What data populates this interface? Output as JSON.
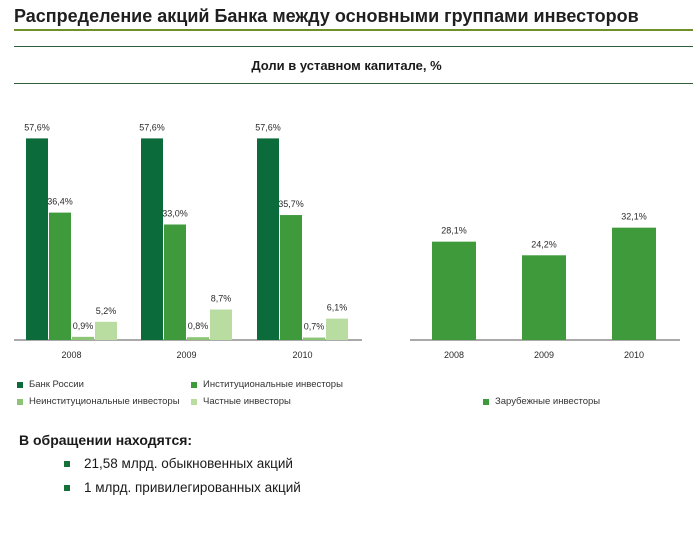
{
  "page": {
    "title": "Распределение акций Банка между основными группами инвесторов",
    "subtitle": "Доли в уставном капитале, %"
  },
  "colors": {
    "bank_russia": "#0b6b3a",
    "institutional": "#3f9a3c",
    "non_institutional": "#8cc576",
    "private": "#b9dca0",
    "foreign": "#3f9a3c",
    "accent_rule": "#6e8f2a"
  },
  "chart_data": [
    {
      "type": "bar",
      "categories": [
        "2008",
        "2009",
        "2010"
      ],
      "series": [
        {
          "name": "Банк России",
          "values": [
            57.6,
            57.6,
            57.6
          ],
          "labels": [
            "57,6%",
            "57,6%",
            "57,6%"
          ]
        },
        {
          "name": "Институциональные инвесторы",
          "values": [
            36.4,
            33.0,
            35.7
          ],
          "labels": [
            "36,4%",
            "33,0%",
            "35,7%"
          ]
        },
        {
          "name": "Неинституциональные инвесторы",
          "values": [
            0.9,
            0.8,
            0.7
          ],
          "labels": [
            "0,9%",
            "0,8%",
            "0,7%"
          ]
        },
        {
          "name": "Частные инвесторы",
          "values": [
            5.2,
            8.7,
            6.1
          ],
          "labels": [
            "5,2%",
            "8,7%",
            "6,1%"
          ]
        }
      ],
      "legend": "bottom",
      "grid": false
    },
    {
      "type": "bar",
      "categories": [
        "2008",
        "2009",
        "2010"
      ],
      "series": [
        {
          "name": "Зарубежные инвесторы",
          "values": [
            28.1,
            24.2,
            32.1
          ],
          "labels": [
            "28,1%",
            "24,2%",
            "32,1%"
          ]
        }
      ],
      "legend": "bottom",
      "grid": false
    }
  ],
  "legend": {
    "left": [
      {
        "label": "Банк России",
        "color_key": "bank_russia"
      },
      {
        "label": "Институциональные инвесторы",
        "color_key": "institutional"
      },
      {
        "label": "Неинституциональные инвесторы",
        "color_key": "non_institutional"
      },
      {
        "label": "Частные инвесторы",
        "color_key": "private"
      }
    ],
    "right": [
      {
        "label": "Зарубежные инвесторы",
        "color_key": "foreign"
      }
    ]
  },
  "notes": {
    "heading": "В обращении находятся:",
    "items": [
      "21,58 млрд. обыкновенных акций",
      "1 млрд. привилегированных акций"
    ]
  }
}
